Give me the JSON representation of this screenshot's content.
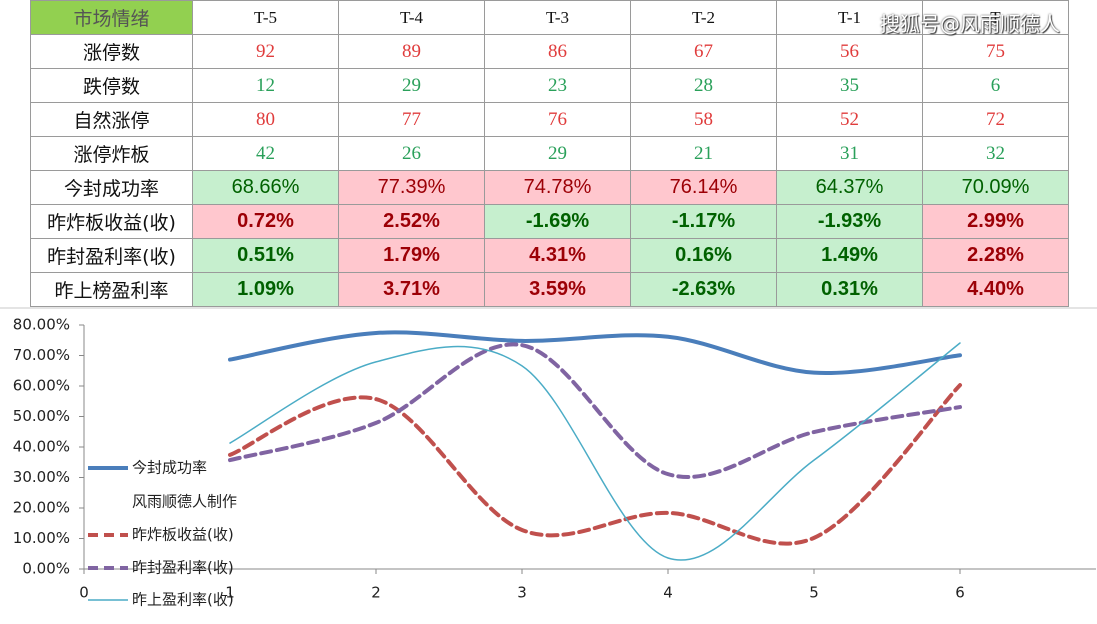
{
  "table": {
    "header": [
      "市场情绪",
      "T-5",
      "T-4",
      "T-3",
      "T-2",
      "T-1",
      "T"
    ],
    "header_fill": "#92d050",
    "rows": [
      {
        "label": "涨停数",
        "kind": "num",
        "cells": [
          {
            "text": "92",
            "color": "#e03c3c"
          },
          {
            "text": "89",
            "color": "#e03c3c"
          },
          {
            "text": "86",
            "color": "#e03c3c"
          },
          {
            "text": "67",
            "color": "#e03c3c"
          },
          {
            "text": "56",
            "color": "#e03c3c"
          },
          {
            "text": "75",
            "color": "#e03c3c"
          }
        ]
      },
      {
        "label": "跌停数",
        "kind": "num",
        "cells": [
          {
            "text": "12",
            "color": "#2aa05a"
          },
          {
            "text": "29",
            "color": "#2aa05a"
          },
          {
            "text": "23",
            "color": "#2aa05a"
          },
          {
            "text": "28",
            "color": "#2aa05a"
          },
          {
            "text": "35",
            "color": "#2aa05a"
          },
          {
            "text": "6",
            "color": "#2aa05a"
          }
        ]
      },
      {
        "label": "自然涨停",
        "kind": "num",
        "cells": [
          {
            "text": "80",
            "color": "#e03c3c"
          },
          {
            "text": "77",
            "color": "#e03c3c"
          },
          {
            "text": "76",
            "color": "#e03c3c"
          },
          {
            "text": "58",
            "color": "#e03c3c"
          },
          {
            "text": "52",
            "color": "#e03c3c"
          },
          {
            "text": "72",
            "color": "#e03c3c"
          }
        ]
      },
      {
        "label": "涨停炸板",
        "kind": "num",
        "cells": [
          {
            "text": "42",
            "color": "#2aa05a"
          },
          {
            "text": "26",
            "color": "#2aa05a"
          },
          {
            "text": "29",
            "color": "#2aa05a"
          },
          {
            "text": "21",
            "color": "#2aa05a"
          },
          {
            "text": "31",
            "color": "#2aa05a"
          },
          {
            "text": "32",
            "color": "#2aa05a"
          }
        ]
      },
      {
        "label": "今封成功率",
        "kind": "pct",
        "cells": [
          {
            "text": "68.66%",
            "color": "#006100",
            "fill": "#c6efce"
          },
          {
            "text": "77.39%",
            "color": "#9c0006",
            "fill": "#ffc7ce"
          },
          {
            "text": "74.78%",
            "color": "#9c0006",
            "fill": "#ffc7ce"
          },
          {
            "text": "76.14%",
            "color": "#9c0006",
            "fill": "#ffc7ce"
          },
          {
            "text": "64.37%",
            "color": "#006100",
            "fill": "#c6efce"
          },
          {
            "text": "70.09%",
            "color": "#006100",
            "fill": "#c6efce"
          }
        ]
      },
      {
        "label": "昨炸板收益(收)",
        "kind": "pct",
        "bold": true,
        "cells": [
          {
            "text": "0.72%",
            "color": "#9c0006",
            "fill": "#ffc7ce"
          },
          {
            "text": "2.52%",
            "color": "#9c0006",
            "fill": "#ffc7ce"
          },
          {
            "text": "-1.69%",
            "color": "#006100",
            "fill": "#c6efce"
          },
          {
            "text": "-1.17%",
            "color": "#006100",
            "fill": "#c6efce"
          },
          {
            "text": "-1.93%",
            "color": "#006100",
            "fill": "#c6efce"
          },
          {
            "text": "2.99%",
            "color": "#9c0006",
            "fill": "#ffc7ce"
          }
        ]
      },
      {
        "label": "昨封盈利率(收)",
        "kind": "pct",
        "bold": true,
        "cells": [
          {
            "text": "0.51%",
            "color": "#006100",
            "fill": "#c6efce"
          },
          {
            "text": "1.79%",
            "color": "#9c0006",
            "fill": "#ffc7ce"
          },
          {
            "text": "4.31%",
            "color": "#9c0006",
            "fill": "#ffc7ce"
          },
          {
            "text": "0.16%",
            "color": "#006100",
            "fill": "#c6efce"
          },
          {
            "text": "1.49%",
            "color": "#006100",
            "fill": "#c6efce"
          },
          {
            "text": "2.28%",
            "color": "#9c0006",
            "fill": "#ffc7ce"
          }
        ]
      },
      {
        "label": "昨上榜盈利率",
        "kind": "pct",
        "bold": true,
        "cells": [
          {
            "text": "1.09%",
            "color": "#006100",
            "fill": "#c6efce"
          },
          {
            "text": "3.71%",
            "color": "#9c0006",
            "fill": "#ffc7ce"
          },
          {
            "text": "3.59%",
            "color": "#9c0006",
            "fill": "#ffc7ce"
          },
          {
            "text": "-2.63%",
            "color": "#006100",
            "fill": "#c6efce"
          },
          {
            "text": "0.31%",
            "color": "#006100",
            "fill": "#c6efce"
          },
          {
            "text": "4.40%",
            "color": "#9c0006",
            "fill": "#ffc7ce"
          }
        ]
      }
    ]
  },
  "watermark": "搜狐号@风雨顺德人",
  "chart_data": {
    "type": "line",
    "annotation": "风雨顺德人制作",
    "x": [
      1,
      2,
      3,
      4,
      5,
      6
    ],
    "xlim": [
      0,
      7
    ],
    "xticks": [
      0,
      1,
      2,
      3,
      4,
      5,
      6
    ],
    "ylim": [
      0,
      80
    ],
    "yticks": [
      {
        "value": 0,
        "label": "0.00%"
      },
      {
        "value": 10,
        "label": "10.00%"
      },
      {
        "value": 20,
        "label": "20.00%"
      },
      {
        "value": 30,
        "label": "30.00%"
      },
      {
        "value": 40,
        "label": "40.00%"
      },
      {
        "value": 50,
        "label": "50.00%"
      },
      {
        "value": 60,
        "label": "60.00%"
      },
      {
        "value": 70,
        "label": "70.00%"
      },
      {
        "value": 80,
        "label": "80.00%"
      }
    ],
    "smooth": true,
    "series": [
      {
        "name": "今封成功率",
        "color": "#4a7ebb",
        "width": 4,
        "dash": "none",
        "values": [
          68.66,
          77.39,
          74.78,
          76.14,
          64.37,
          70.09
        ]
      },
      {
        "name": "昨炸板收益(收)",
        "color": "#c0504d",
        "width": 4,
        "dash": "10 6",
        "values": [
          37.4,
          55.7,
          12.8,
          18.4,
          10.2,
          60.3
        ]
      },
      {
        "name": "昨封盈利率(收)",
        "color": "#8064a2",
        "width": 4,
        "dash": "10 6",
        "values": [
          35.7,
          47.9,
          73.4,
          31.1,
          44.9,
          53.1
        ]
      },
      {
        "name": "昨上盈利率(收)",
        "color": "#4bacc6",
        "width": 1.5,
        "dash": "none",
        "values": [
          41.3,
          67.9,
          66.6,
          3.6,
          35.7,
          74.1
        ]
      }
    ]
  }
}
